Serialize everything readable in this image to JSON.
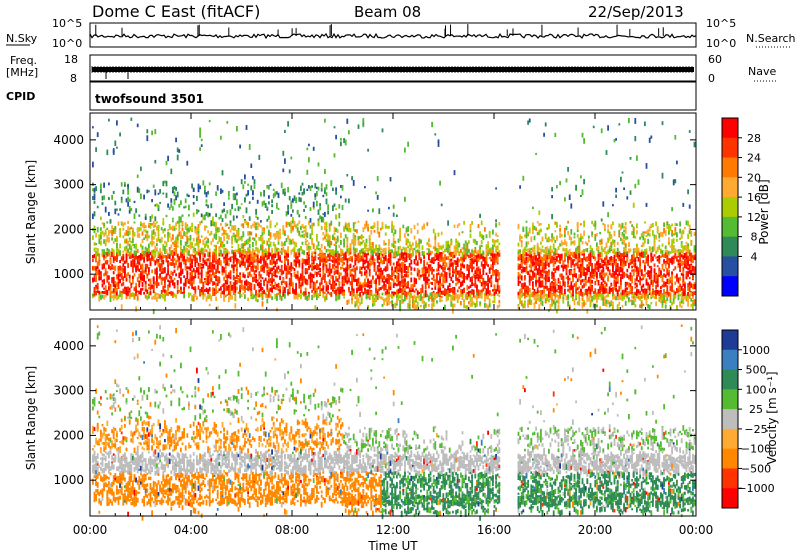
{
  "chart_data": [
    {
      "type": "line",
      "panel": "noise-sky-search",
      "title": "Dome C East (fitACF)",
      "beam": "Beam 08",
      "date": "22/Sep/2013",
      "left_label": "N.Sky",
      "right_label": "N.Search",
      "left_ticks": [
        "10^5",
        "10^0"
      ],
      "right_ticks": [
        "10^5",
        "10^0"
      ]
    },
    {
      "type": "line",
      "panel": "frequency-nave",
      "left_label_line1": "Freq.",
      "left_label_line2": "[MHz]",
      "right_label": "Nave",
      "left_ticks": [
        "18",
        "8"
      ],
      "right_ticks": [
        "60",
        "0"
      ]
    },
    {
      "type": "table",
      "panel": "cpid",
      "label": "CPID",
      "value": "twofsound 3501"
    },
    {
      "type": "heatmap",
      "panel": "power",
      "ylabel": "Slant Range [km]",
      "ylim": [
        200,
        4600
      ],
      "yticks": [
        1000,
        2000,
        3000,
        4000
      ],
      "colorbar_label": "Power [dB]",
      "colorbar_ticks": [
        "28",
        "24",
        "20",
        "16",
        "12",
        "8",
        "4"
      ],
      "colors": [
        "#ff0000",
        "#ff3300",
        "#ff7a00",
        "#ffaa33",
        "#aacc00",
        "#55bb33",
        "#2e8b57",
        "#2850a0",
        "#0000ff"
      ]
    },
    {
      "type": "heatmap",
      "panel": "velocity",
      "ylabel": "Slant Range [km]",
      "ylim": [
        200,
        4600
      ],
      "yticks": [
        1000,
        2000,
        3000,
        4000
      ],
      "colorbar_label": "Velocity [m s⁻¹]",
      "colorbar_ticks": [
        "1000",
        "500",
        "100",
        "25",
        "−25",
        "−100",
        "−500",
        "−1000"
      ],
      "colors": [
        "#1e3c96",
        "#3a7fc0",
        "#2e8b57",
        "#55bb33",
        "#bdbdbd",
        "#ffaa33",
        "#ff8800",
        "#ff3300",
        "#ff0000"
      ]
    }
  ],
  "xaxis": {
    "label": "Time UT",
    "ticks": [
      "00:00",
      "04:00",
      "08:00",
      "12:00",
      "16:00",
      "20:00",
      "00:00"
    ]
  }
}
